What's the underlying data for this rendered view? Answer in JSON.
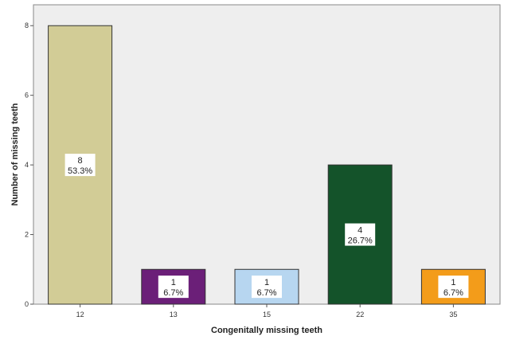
{
  "chart_data": {
    "type": "bar",
    "title": "",
    "xlabel": "Congenitally missing teeth",
    "ylabel": "Number of missing teeth",
    "categories": [
      "12",
      "13",
      "15",
      "22",
      "35"
    ],
    "values": [
      8,
      1,
      1,
      4,
      1
    ],
    "data_labels": [
      {
        "count": "8",
        "percent": "53.3%"
      },
      {
        "count": "1",
        "percent": "6.7%"
      },
      {
        "count": "1",
        "percent": "6.7%"
      },
      {
        "count": "4",
        "percent": "26.7%"
      },
      {
        "count": "1",
        "percent": "6.7%"
      }
    ],
    "ylim": [
      0,
      8.6
    ],
    "yticks": [
      "0",
      "2",
      "4",
      "6",
      "8"
    ],
    "grid": false,
    "legend": "none",
    "colors": [
      "#d2cc96",
      "#6b1f78",
      "#b7d6f0",
      "#14532a",
      "#f39c1a"
    ],
    "plot_background": "#eeeeee"
  }
}
